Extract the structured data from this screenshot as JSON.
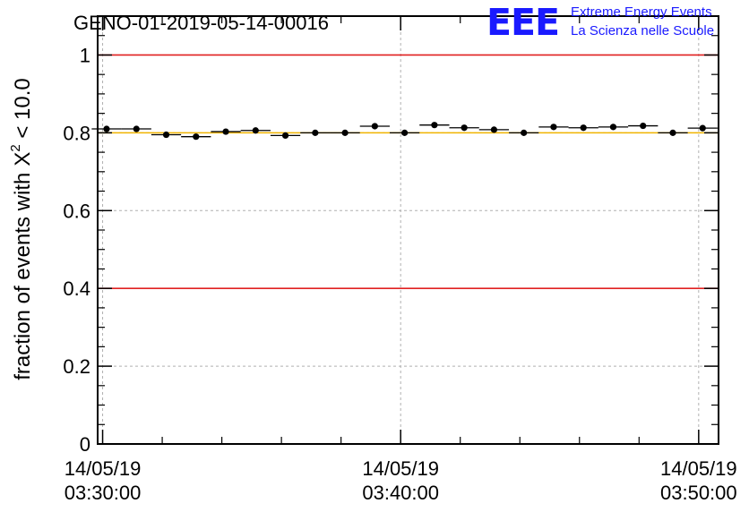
{
  "chart_data": {
    "type": "scatter",
    "title": "GENO-01-2019-05-14-00016",
    "ylabel_text": "fraction of events with",
    "ylabel_symbol": "X",
    "ylabel_exponent": "2",
    "ylabel_suffix": " < 10.0",
    "xlabel": "",
    "x_range": [
      "03:29:50",
      "03:50:40"
    ],
    "ylim": [
      0,
      1.1
    ],
    "yticks": [
      {
        "value": 0,
        "label": "0"
      },
      {
        "value": 0.2,
        "label": "0.2"
      },
      {
        "value": 0.4,
        "label": "0.4"
      },
      {
        "value": 0.6,
        "label": "0.6"
      },
      {
        "value": 0.8,
        "label": "0.8"
      },
      {
        "value": 1,
        "label": "1"
      }
    ],
    "xticks": [
      {
        "time": "03:30:00",
        "date_label": "14/05/19",
        "time_label": "03:30:00"
      },
      {
        "time": "03:40:00",
        "date_label": "14/05/19",
        "time_label": "03:40:00"
      },
      {
        "time": "03:50:00",
        "date_label": "14/05/19",
        "time_label": "03:50:00"
      }
    ],
    "grid": true,
    "bin_minutes": 1,
    "series": [
      {
        "color": "#000000",
        "points": [
          {
            "x": "03:30:08",
            "y": 0.81
          },
          {
            "x": "03:31:08",
            "y": 0.81
          },
          {
            "x": "03:32:08",
            "y": 0.795
          },
          {
            "x": "03:33:08",
            "y": 0.79
          },
          {
            "x": "03:34:08",
            "y": 0.803
          },
          {
            "x": "03:35:08",
            "y": 0.806
          },
          {
            "x": "03:36:08",
            "y": 0.793
          },
          {
            "x": "03:37:08",
            "y": 0.8
          },
          {
            "x": "03:38:08",
            "y": 0.8
          },
          {
            "x": "03:39:08",
            "y": 0.817
          },
          {
            "x": "03:40:08",
            "y": 0.8
          },
          {
            "x": "03:41:08",
            "y": 0.82
          },
          {
            "x": "03:42:08",
            "y": 0.813
          },
          {
            "x": "03:43:08",
            "y": 0.808
          },
          {
            "x": "03:44:08",
            "y": 0.8
          },
          {
            "x": "03:45:08",
            "y": 0.815
          },
          {
            "x": "03:46:08",
            "y": 0.813
          },
          {
            "x": "03:47:08",
            "y": 0.815
          },
          {
            "x": "03:48:08",
            "y": 0.818
          },
          {
            "x": "03:49:08",
            "y": 0.8
          },
          {
            "x": "03:50:08",
            "y": 0.812
          }
        ]
      }
    ],
    "reference_lines": [
      {
        "y": 1.0,
        "color": "#e02020"
      },
      {
        "y": 0.4,
        "color": "#e02020"
      },
      {
        "y": 0.8,
        "color": "#f0b400"
      }
    ]
  },
  "logo": {
    "mark": "EEE",
    "line1": "Extreme Energy Events",
    "line2": "La Scienza nelle Scuole",
    "color": "#1a1aff"
  }
}
